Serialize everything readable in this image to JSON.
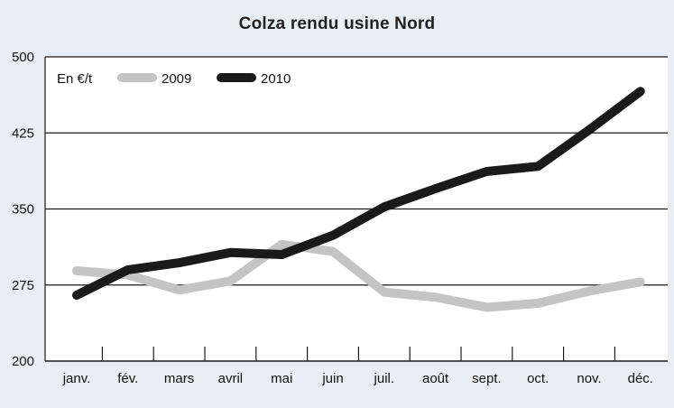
{
  "chart_data": {
    "type": "line",
    "title": "Colza rendu usine Nord",
    "unit_label": "En €/t",
    "categories": [
      "janv.",
      "fév.",
      "mars",
      "avril",
      "mai",
      "juin",
      "juil.",
      "août",
      "sept.",
      "oct.",
      "nov.",
      "déc."
    ],
    "series": [
      {
        "name": "2009",
        "color": "#c4c4c4",
        "values": [
          289,
          285,
          270,
          279,
          315,
          308,
          268,
          263,
          253,
          257,
          269,
          278
        ]
      },
      {
        "name": "2010",
        "color": "#1a1a1a",
        "values": [
          265,
          290,
          297,
          307,
          305,
          324,
          352,
          370,
          387,
          392,
          428,
          466
        ]
      }
    ],
    "ylim": [
      200,
      500
    ],
    "yticks": [
      "200",
      "275",
      "350",
      "425",
      "500"
    ],
    "grid": "horizontal",
    "legend_position": "top-left"
  }
}
